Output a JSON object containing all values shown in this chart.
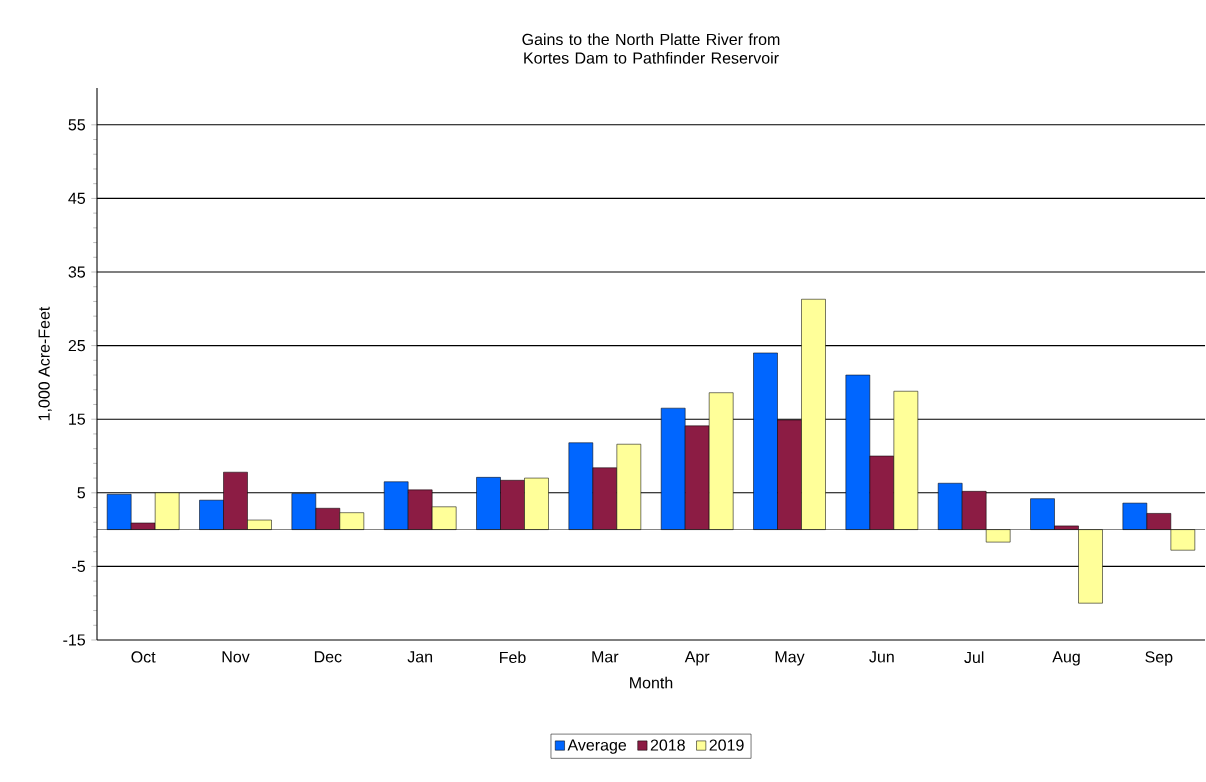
{
  "chart_data": {
    "type": "bar",
    "title": "Gains to the North Platte River from Kortes Dam to Pathfinder Reservoir",
    "xlabel": "Month",
    "ylabel": "1,000 Acre-Feet",
    "categories": [
      "Oct",
      "Nov",
      "Dec",
      "Jan",
      "Feb",
      "Mar",
      "Apr",
      "May",
      "Jun",
      "Jul",
      "Aug",
      "Sep"
    ],
    "series": [
      {
        "name": "Average",
        "color": "#0066ff",
        "values": [
          4.8,
          4.0,
          4.9,
          6.5,
          7.1,
          11.8,
          16.5,
          24.0,
          21.0,
          6.3,
          4.2,
          3.6
        ]
      },
      {
        "name": "2018",
        "color": "#8c1c44",
        "values": [
          0.9,
          7.8,
          2.9,
          5.4,
          6.7,
          8.4,
          14.1,
          14.9,
          10.0,
          5.2,
          0.5,
          2.2
        ]
      },
      {
        "name": "2019",
        "color": "#ffff99",
        "values": [
          5.0,
          1.3,
          2.3,
          3.1,
          7.0,
          11.6,
          18.6,
          31.3,
          18.8,
          -1.7,
          -10.0,
          -2.8
        ]
      }
    ],
    "ylim": [
      -15,
      60
    ],
    "yticks": [
      -15,
      -5,
      5,
      15,
      25,
      35,
      45,
      55
    ],
    "grid": "y",
    "legend": "bottom"
  }
}
